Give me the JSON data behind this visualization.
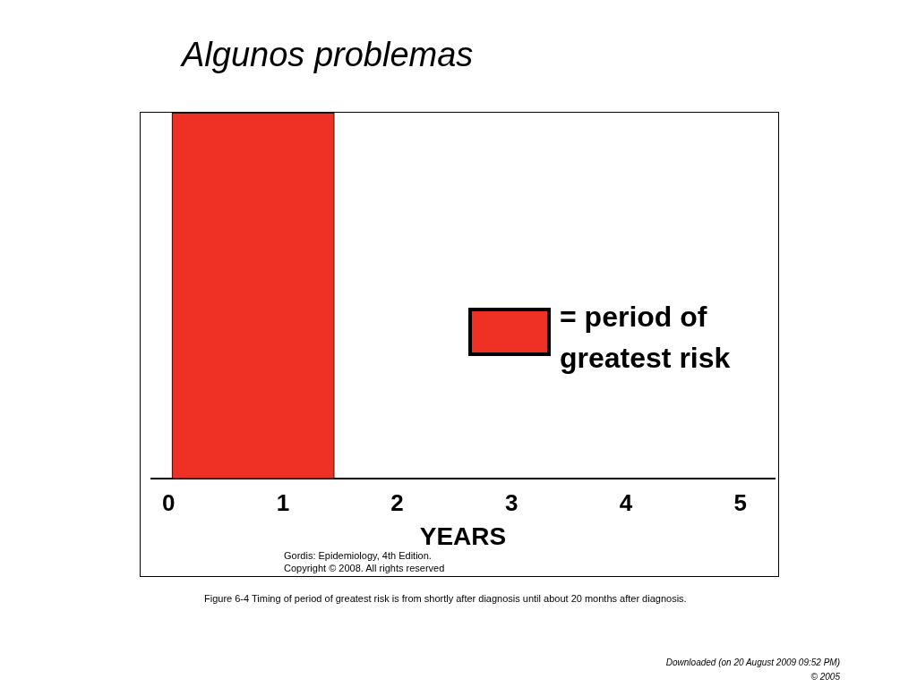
{
  "chart_data": {
    "type": "bar",
    "orientation": "horizontal",
    "title": "Algunos problemas",
    "xlabel": "YEARS",
    "categories": [
      null
    ],
    "series": [
      {
        "name": "= period of greatest risk",
        "color": "#ee3124",
        "values": [
          1.42
        ],
        "base": [
          0.03
        ]
      }
    ],
    "xlim": [
      -0.15,
      5.3
    ],
    "xticks": [
      0,
      1,
      2,
      3,
      4,
      5
    ],
    "grid": false,
    "legend": "right",
    "tick_labels": "x",
    "annotations": [
      "Gordis: Epidemiology, 4th Edition.",
      "Copyright © 2008. All rights reserved",
      "Figure 6-4 Timing of period of greatest risk is from shortly after diagnosis until about 20 months after diagnosis.",
      "Downloaded (on 20 August 2009 09:52 PM)",
      "© 2005"
    ]
  }
}
